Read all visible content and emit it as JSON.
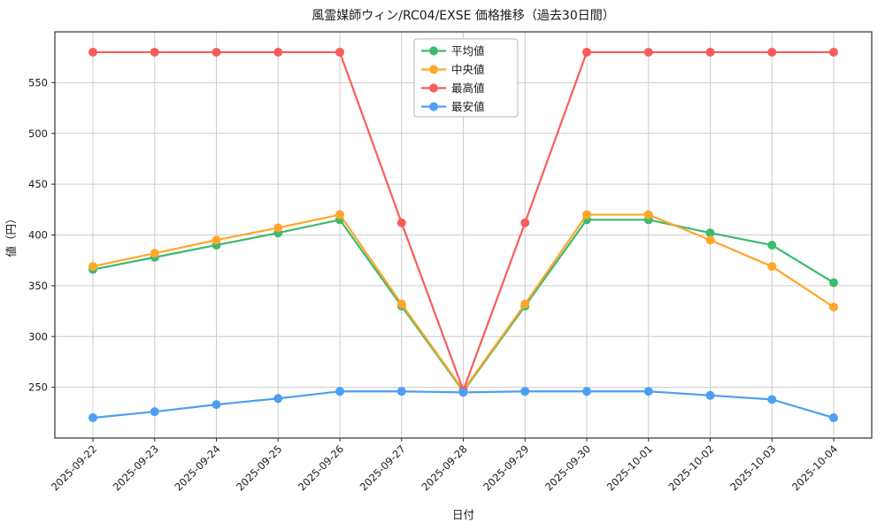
{
  "chart_data": {
    "type": "line",
    "title": "風霊媒師ウィン/RC04/EXSE 価格推移（過去30日間）",
    "xlabel": "日付",
    "ylabel": "値（円）",
    "x": [
      "2025-09-22",
      "2025-09-23",
      "2025-09-24",
      "2025-09-25",
      "2025-09-26",
      "2025-09-27",
      "2025-09-28",
      "2025-09-29",
      "2025-09-30",
      "2025-10-01",
      "2025-10-02",
      "2025-10-03",
      "2025-10-04"
    ],
    "ylim": [
      200,
      600
    ],
    "yticks": [
      250,
      300,
      350,
      400,
      450,
      500,
      550
    ],
    "grid": true,
    "legend_position": "upper center",
    "series": [
      {
        "name": "平均値",
        "color": "#3dba6e",
        "values": [
          366,
          378,
          390,
          402,
          415,
          330,
          246,
          330,
          415,
          415,
          402,
          390,
          353
        ]
      },
      {
        "name": "中央値",
        "color": "#ffa62b",
        "values": [
          369,
          382,
          395,
          407,
          420,
          332,
          247,
          332,
          420,
          420,
          395,
          369,
          329
        ]
      },
      {
        "name": "最高値",
        "color": "#f85c5c",
        "values": [
          580,
          580,
          580,
          580,
          580,
          412,
          247,
          412,
          580,
          580,
          580,
          580,
          580
        ]
      },
      {
        "name": "最安値",
        "color": "#4d9ff2",
        "values": [
          220,
          226,
          233,
          239,
          246,
          246,
          245,
          246,
          246,
          246,
          242,
          238,
          220
        ]
      }
    ]
  }
}
